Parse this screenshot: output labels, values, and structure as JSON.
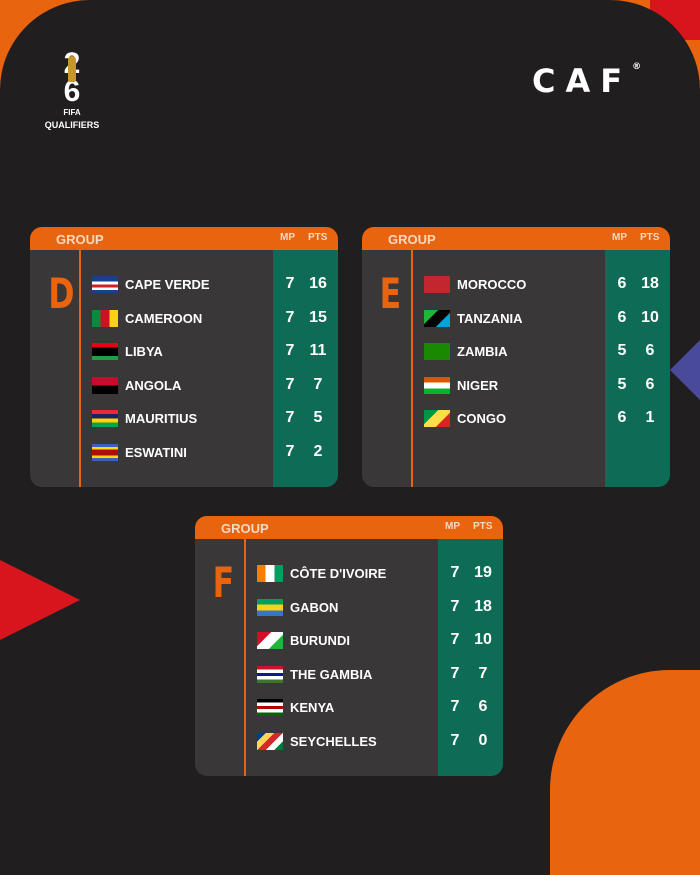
{
  "branding": {
    "tournament_logo_text": "FIFA",
    "tournament_logo_year": "26",
    "subtitle": "QUALIFIERS",
    "confederation": "CAF",
    "registered_mark": "®"
  },
  "columns": {
    "group_label": "GROUP",
    "mp_label": "MP",
    "pts_label": "PTS"
  },
  "colors": {
    "background": "#201e1f",
    "card": "#3a3738",
    "accent_orange": "#e8640f",
    "stats_green": "#0e6b55"
  },
  "groups": [
    {
      "letter": "D",
      "teams": [
        {
          "name": "CAPE VERDE",
          "mp": "7",
          "pts": "16",
          "flag": [
            "#1b3f8f",
            "#1b3f8f",
            "#ffffff",
            "#cf2027",
            "#ffffff",
            "#1b3f8f"
          ]
        },
        {
          "name": "CAMEROON",
          "mp": "7",
          "pts": "15",
          "flag_v": [
            "#0a8a3a",
            "#ce1126",
            "#fcd116"
          ]
        },
        {
          "name": "LIBYA",
          "mp": "7",
          "pts": "11",
          "flag": [
            "#e70013",
            "#000000",
            "#000000",
            "#239e46"
          ]
        },
        {
          "name": "ANGOLA",
          "mp": "7",
          "pts": "7",
          "flag": [
            "#cc092f",
            "#000000"
          ]
        },
        {
          "name": "MAURITIUS",
          "mp": "7",
          "pts": "5",
          "flag": [
            "#ea2839",
            "#1a206d",
            "#ffd500",
            "#00a551"
          ]
        },
        {
          "name": "ESWATINI",
          "mp": "7",
          "pts": "2",
          "flag": [
            "#3e5eb9",
            "#ffd900",
            "#b10c0c",
            "#b10c0c",
            "#ffd900",
            "#3e5eb9"
          ]
        }
      ]
    },
    {
      "letter": "E",
      "teams": [
        {
          "name": "MOROCCO",
          "mp": "6",
          "pts": "18",
          "flag": [
            "#c1272d"
          ]
        },
        {
          "name": "TANZANIA",
          "mp": "6",
          "pts": "10",
          "flag_diag": [
            "#1eb53a",
            "#000000",
            "#00a3dd"
          ]
        },
        {
          "name": "ZAMBIA",
          "mp": "5",
          "pts": "6",
          "flag": [
            "#198a00"
          ]
        },
        {
          "name": "NIGER",
          "mp": "5",
          "pts": "6",
          "flag": [
            "#e05206",
            "#ffffff",
            "#0db02b"
          ]
        },
        {
          "name": "CONGO",
          "mp": "6",
          "pts": "1",
          "flag_diag": [
            "#009543",
            "#fbde4a",
            "#dc241f"
          ]
        }
      ]
    },
    {
      "letter": "F",
      "teams": [
        {
          "name": "CÔTE D'IVOIRE",
          "mp": "7",
          "pts": "19",
          "flag_v": [
            "#f77f00",
            "#ffffff",
            "#009e60"
          ]
        },
        {
          "name": "GABON",
          "mp": "7",
          "pts": "18",
          "flag": [
            "#009e60",
            "#fcd116",
            "#3a75c4"
          ]
        },
        {
          "name": "BURUNDI",
          "mp": "7",
          "pts": "10",
          "flag_diag": [
            "#ce1126",
            "#ffffff",
            "#1eb53a"
          ]
        },
        {
          "name": "THE GAMBIA",
          "mp": "7",
          "pts": "7",
          "flag": [
            "#ce1126",
            "#ffffff",
            "#0c1c8c",
            "#ffffff",
            "#3a7728"
          ]
        },
        {
          "name": "KENYA",
          "mp": "7",
          "pts": "6",
          "flag": [
            "#000000",
            "#ffffff",
            "#bb0000",
            "#ffffff",
            "#006600"
          ]
        },
        {
          "name": "SEYCHELLES",
          "mp": "7",
          "pts": "0",
          "flag_diag": [
            "#003f87",
            "#fcd856",
            "#d62828",
            "#ffffff",
            "#007a3d"
          ]
        }
      ]
    }
  ]
}
